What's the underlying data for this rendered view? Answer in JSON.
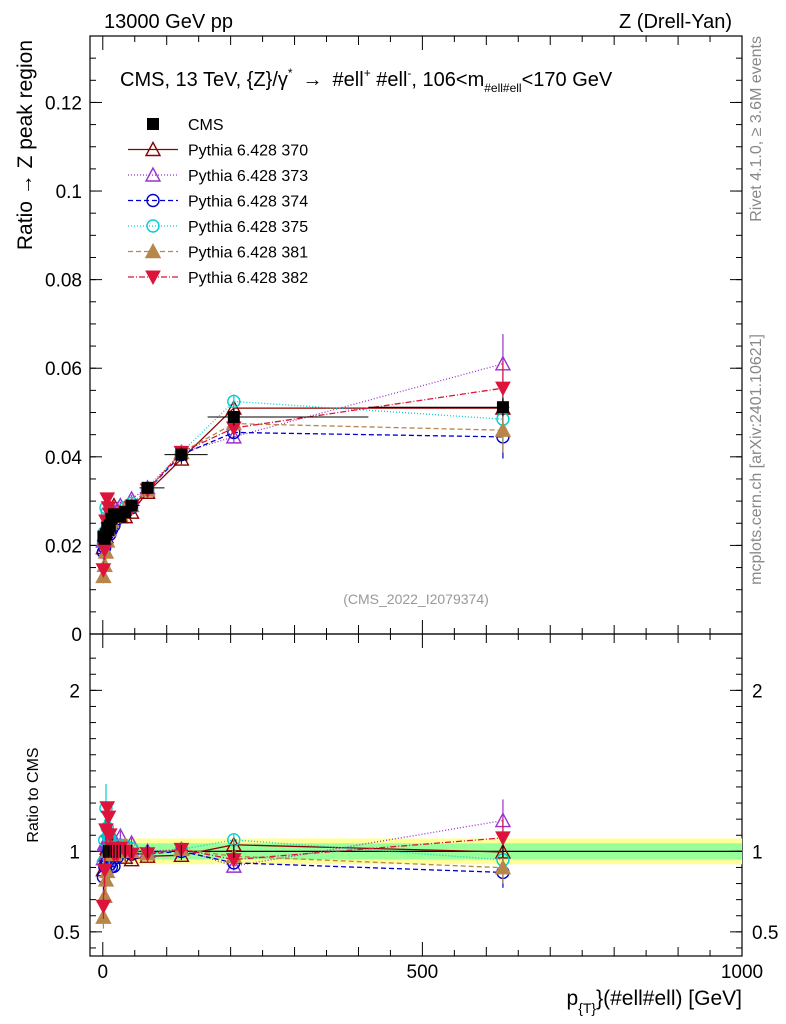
{
  "header": {
    "left": "13000 GeV pp",
    "right": "Z (Drell-Yan)"
  },
  "side_labels": {
    "rivet": "Rivet 4.1.0, ≥ 3.6M events",
    "mcplots": "mcplots.cern.ch [arXiv:2401.10621]"
  },
  "chart_data": [
    {
      "type": "scatter",
      "panel": "main",
      "title_parts": {
        "a": "CMS, 13 TeV, {Z}/γ",
        "a_sup": "*",
        "arrow": "→",
        "b": "#ell",
        "b_sup": "+",
        "c": " #ell",
        "c_sup": "-",
        "d": ", 106<m",
        "d_sub": "#ell#ell",
        "e": "<170 GeV"
      },
      "ylabel": "Ratio → Z peak region",
      "ylim": [
        0,
        0.135
      ],
      "xlim": [
        -20,
        1000
      ],
      "yticks": [
        {
          "v": 0.02,
          "label": "0.02"
        },
        {
          "v": 0.04,
          "label": "0.04"
        },
        {
          "v": 0.06,
          "label": "0.06"
        },
        {
          "v": 0.08,
          "label": "0.08"
        },
        {
          "v": 0.1,
          "label": "0.1"
        },
        {
          "v": 0.12,
          "label": "0.12"
        },
        {
          "v": 0.0,
          "label": "0"
        }
      ],
      "watermark": "(CMS_2022_I2079374)",
      "x": [
        1,
        3,
        5,
        7,
        9,
        11,
        13.5,
        17.5,
        22.5,
        27.5,
        35,
        45,
        70,
        123,
        205,
        626
      ],
      "series": [
        {
          "name": "CMS",
          "color": "#000000",
          "marker": "square",
          "dash": "none",
          "values": [
            0.022,
            0.0215,
            0.0225,
            0.024,
            0.0235,
            0.0245,
            0.026,
            0.027,
            0.027,
            0.0265,
            0.0275,
            0.029,
            0.033,
            0.0405,
            0.049,
            0.0512
          ]
        },
        {
          "name": "Pythia 6.428 370",
          "color": "#8b0000",
          "marker": "triangle-open",
          "dash": "none",
          "values": [
            0.0195,
            0.021,
            0.022,
            0.0245,
            0.025,
            0.026,
            0.028,
            0.029,
            0.0275,
            0.0265,
            0.0265,
            0.0275,
            0.032,
            0.0395,
            0.051,
            0.051
          ]
        },
        {
          "name": "Pythia 6.428 373",
          "color": "#9932cc",
          "marker": "triangle-open",
          "dash": "1,2",
          "values": [
            0.021,
            0.0225,
            0.0235,
            0.025,
            0.0265,
            0.0275,
            0.0265,
            0.0275,
            0.028,
            0.029,
            0.0285,
            0.0305,
            0.033,
            0.041,
            0.0445,
            0.061
          ]
        },
        {
          "name": "Pythia 6.428 374",
          "color": "#0000cd",
          "marker": "circle-open",
          "dash": "5,3",
          "values": [
            0.0185,
            0.0195,
            0.0205,
            0.0225,
            0.0235,
            0.0225,
            0.0235,
            0.0245,
            0.026,
            0.027,
            0.0275,
            0.0285,
            0.0325,
            0.0405,
            0.0455,
            0.0445
          ]
        },
        {
          "name": "Pythia 6.428 375",
          "color": "#00ced1",
          "marker": "circle-open",
          "dash": "1,2",
          "values": [
            0.0205,
            0.023,
            0.0285,
            0.0275,
            0.0255,
            0.0265,
            0.0265,
            0.0265,
            0.027,
            0.0275,
            0.0285,
            0.0295,
            0.0325,
            0.041,
            0.0525,
            0.0485
          ]
        },
        {
          "name": "Pythia 6.428 381",
          "color": "#b8864b",
          "marker": "triangle",
          "dash": "5,3",
          "values": [
            0.013,
            0.0155,
            0.0185,
            0.021,
            0.0235,
            0.025,
            0.0255,
            0.0265,
            0.027,
            0.027,
            0.0285,
            0.029,
            0.0325,
            0.041,
            0.0475,
            0.046
          ]
        },
        {
          "name": "Pythia 6.428 382",
          "color": "#dc143c",
          "marker": "triangle-down",
          "dash": "6,2,1,2",
          "values": [
            0.0145,
            0.019,
            0.0255,
            0.0305,
            0.0285,
            0.027,
            0.0265,
            0.0265,
            0.0265,
            0.027,
            0.0275,
            0.0285,
            0.0325,
            0.041,
            0.0465,
            0.0555
          ]
        }
      ]
    },
    {
      "type": "scatter",
      "panel": "ratio",
      "ylabel": "Ratio to CMS",
      "xlabel": "p_{T}(#ell#ell) [GeV]",
      "xlabel_parts": {
        "p": "p",
        "sub": "{T}",
        "rest": "}(#ell#ell) [GeV]"
      },
      "ylim": [
        0.35,
        2.35
      ],
      "xlim": [
        -20,
        1000
      ],
      "yticks": [
        {
          "v": 0.5,
          "label": "0.5"
        },
        {
          "v": 1,
          "label": "1"
        },
        {
          "v": 2,
          "label": "2"
        }
      ],
      "xticks": [
        {
          "v": 0,
          "label": "0"
        },
        {
          "v": 500,
          "label": "500"
        },
        {
          "v": 1000,
          "label": "1000"
        }
      ],
      "band_inner": 0.05,
      "band_outer": 0.08
    }
  ]
}
